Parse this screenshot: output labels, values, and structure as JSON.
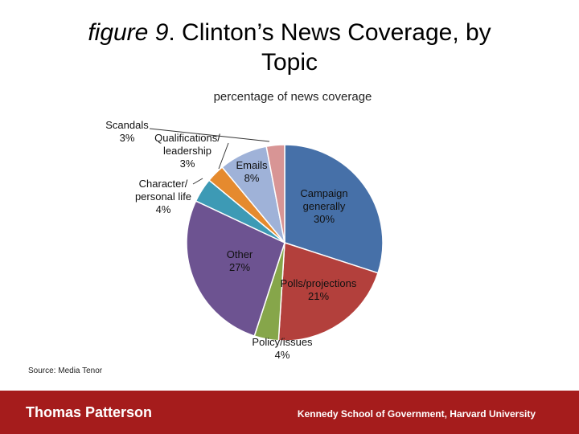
{
  "header": {
    "title_italic": "figure 9",
    "title_rest": ". Clinton’s News Coverage, by",
    "title_line2": "Topic",
    "subtitle": "percentage of news coverage"
  },
  "source": "Source: Media Tenor",
  "footer": {
    "left": "Thomas Patterson",
    "right": "Kennedy School of Government, Harvard University",
    "color": "#a51c1c"
  },
  "chart_data": {
    "type": "pie",
    "title": "percentage of news coverage",
    "slices": [
      {
        "label": "Campaign generally",
        "value": 30,
        "display": "30%",
        "color": "#4670a8"
      },
      {
        "label": "Polls/projections",
        "value": 21,
        "display": "21%",
        "color": "#b3403c"
      },
      {
        "label": "Policy/issues",
        "value": 4,
        "display": "4%",
        "color": "#86a64a"
      },
      {
        "label": "Other",
        "value": 27,
        "display": "27%",
        "color": "#6d5391"
      },
      {
        "label": "Character/ personal life",
        "value": 4,
        "display": "4%",
        "color": "#3d9ab5"
      },
      {
        "label": "Qualifications/ leadership",
        "value": 3,
        "display": "3%",
        "color": "#e58a2e"
      },
      {
        "label": "Emails",
        "value": 8,
        "display": "8%",
        "color": "#9fb2d8"
      },
      {
        "label": "Scandals",
        "value": 3,
        "display": "3%",
        "color": "#d89595"
      }
    ]
  }
}
